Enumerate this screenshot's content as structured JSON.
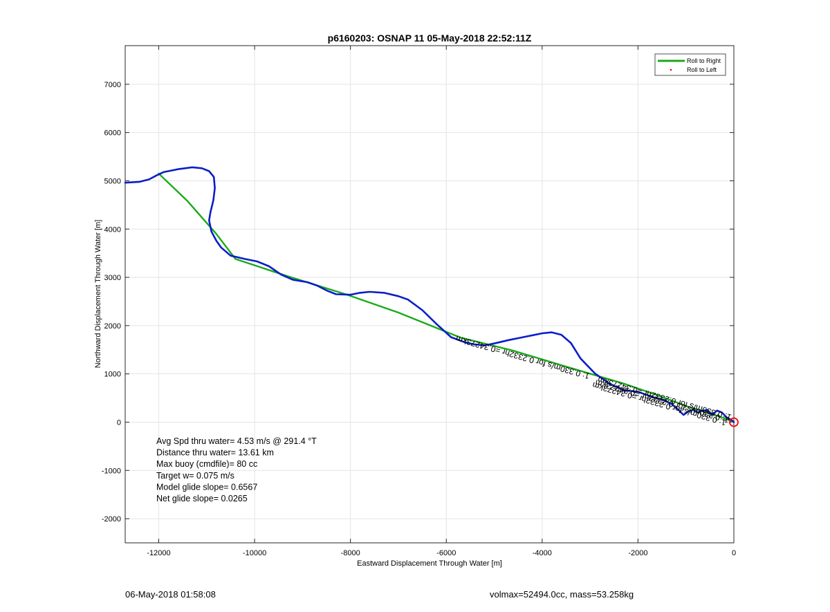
{
  "chart_data": {
    "type": "line",
    "title": "p6160203: OSNAP 11 05-May-2018 22:52:11Z",
    "xlabel": "Eastward Displacement Through Water [m]",
    "ylabel": "Northward Displacement Through Water [m]",
    "xlim": [
      -12700,
      0
    ],
    "ylim": [
      -2500,
      7800
    ],
    "xticks": [
      -12000,
      -10000,
      -8000,
      -6000,
      -4000,
      -2000,
      0
    ],
    "yticks": [
      -2000,
      -1000,
      0,
      1000,
      2000,
      3000,
      4000,
      5000,
      6000,
      7000
    ],
    "grid": true,
    "legend": {
      "placement": "top-right",
      "entries": [
        {
          "label": "Roll to Right",
          "color": "#1aaa1a",
          "marker": "line"
        },
        {
          "label": "Roll to Left",
          "color": "#ff0000",
          "marker": "dot"
        }
      ]
    },
    "series": [
      {
        "color": "#0a1ec8",
        "x": [
          -12700,
          -12400,
          -12200,
          -12050,
          -11900,
          -11600,
          -11300,
          -11100,
          -10950,
          -10850,
          -10830,
          -10860,
          -10920,
          -10950,
          -10900,
          -10800,
          -10700,
          -10500,
          -10200,
          -9950,
          -9700,
          -9450,
          -9200,
          -8900,
          -8700,
          -8500,
          -8300,
          -8000,
          -7800,
          -7600,
          -7300,
          -7000,
          -6800,
          -6500,
          -6200,
          -5900,
          -5600,
          -5400,
          -5200,
          -5000,
          -4700,
          -4400,
          -4200,
          -4000,
          -3800,
          -3600,
          -3400,
          -3200,
          -2900,
          -2600,
          -2300,
          -2000,
          -1700,
          -1500,
          -1300,
          -1150,
          -1050,
          -950,
          -850,
          -750,
          -650,
          -550,
          -450,
          -350,
          -250,
          -150,
          -80,
          -30,
          0
        ],
        "y": [
          4960,
          4980,
          5030,
          5110,
          5180,
          5240,
          5280,
          5260,
          5200,
          5080,
          4850,
          4600,
          4350,
          4180,
          3950,
          3760,
          3620,
          3450,
          3380,
          3330,
          3230,
          3060,
          2950,
          2900,
          2830,
          2730,
          2650,
          2640,
          2680,
          2700,
          2680,
          2610,
          2540,
          2320,
          2030,
          1760,
          1650,
          1610,
          1590,
          1630,
          1700,
          1760,
          1800,
          1840,
          1860,
          1810,
          1640,
          1320,
          1010,
          800,
          660,
          630,
          520,
          470,
          380,
          250,
          150,
          220,
          260,
          200,
          240,
          250,
          150,
          240,
          200,
          100,
          60,
          30,
          0
        ]
      },
      {
        "color": "#1aaa1a",
        "x": [
          -12000,
          -11400,
          -10800,
          -10400,
          -9300,
          -8100,
          -7000,
          -5700,
          -4600,
          -3500,
          -2300,
          -1600,
          -900,
          -500,
          -200,
          0
        ],
        "y": [
          5150,
          4580,
          3900,
          3380,
          3020,
          2650,
          2270,
          1750,
          1480,
          1150,
          800,
          560,
          300,
          180,
          80,
          0
        ]
      }
    ],
    "annotations": [
      "Avg Spd thru water=  4.53 m/s @ 291.4 °T",
      "Distance thru water= 13.61 km",
      "Max buoy (cmdfile)= 80 cc",
      "Target w= 0.075 m/s",
      "Model glide slope= 0.6567",
      "Net glide slope= 0.0265"
    ],
    "rotated_label": {
      "text": "1: 0.330m/s for 0.2332hr =0.34273km",
      "x": -3000,
      "y": 1000
    },
    "end_marker": {
      "x": 0,
      "y": 0,
      "color": "#ff0000"
    }
  },
  "footer": {
    "left": "06-May-2018 01:58:08",
    "right": "volmax=52494.0cc, mass=53.258kg"
  }
}
